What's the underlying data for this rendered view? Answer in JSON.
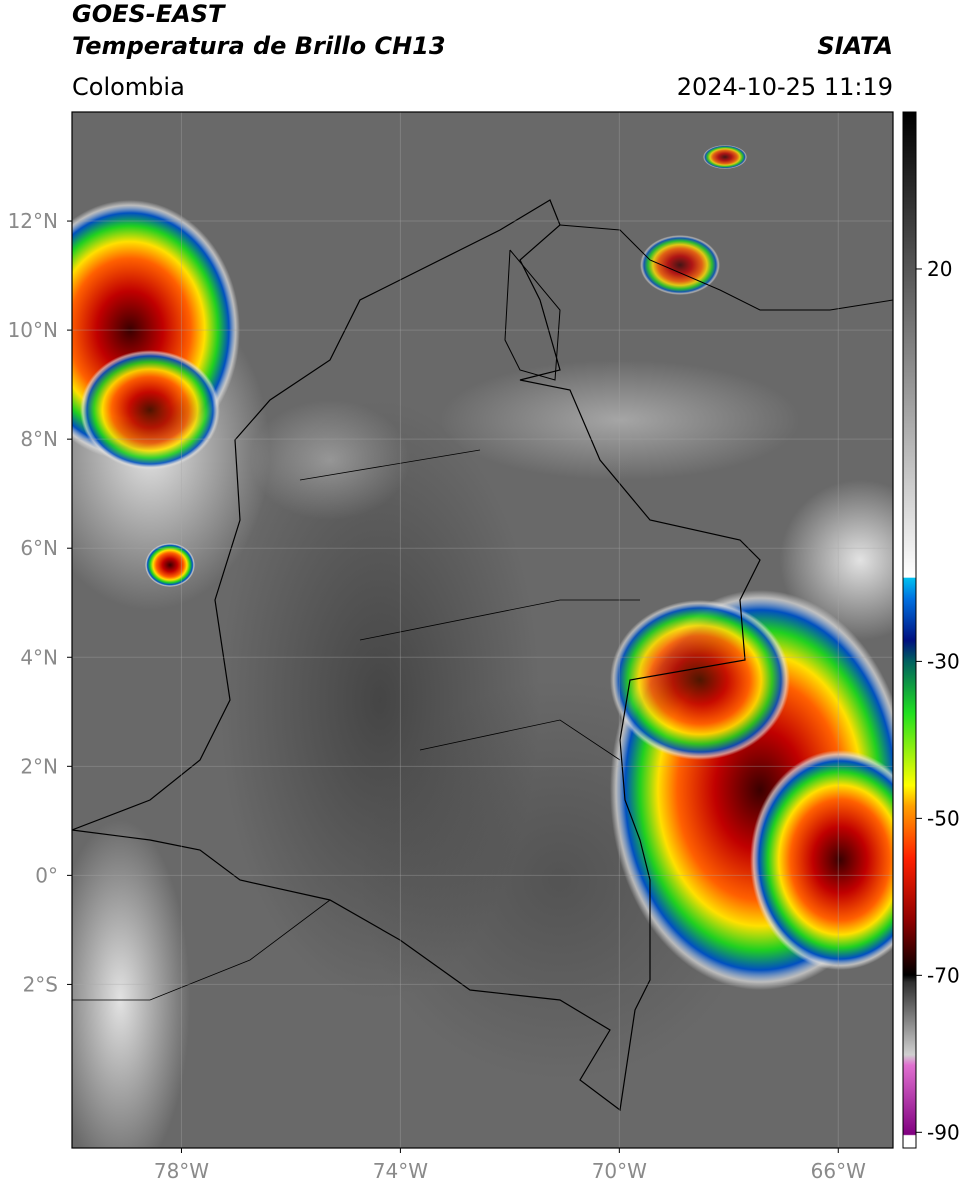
{
  "header": {
    "title": "GOES-EAST",
    "subtitle": "Temperatura de Brillo CH13",
    "source": "SIATA",
    "region": "Colombia",
    "timestamp": "2024-10-25 11:19"
  },
  "map": {
    "lon_range": [
      -80,
      -65
    ],
    "lat_range": [
      -5,
      14
    ],
    "grid": true,
    "lon_ticks": [
      {
        "value": -78,
        "label": "78°W"
      },
      {
        "value": -74,
        "label": "74°W"
      },
      {
        "value": -70,
        "label": "70°W"
      },
      {
        "value": -66,
        "label": "66°W"
      }
    ],
    "lat_ticks": [
      {
        "value": 12,
        "label": "12°N"
      },
      {
        "value": 10,
        "label": "10°N"
      },
      {
        "value": 8,
        "label": "8°N"
      },
      {
        "value": 6,
        "label": "6°N"
      },
      {
        "value": 4,
        "label": "4°N"
      },
      {
        "value": 2,
        "label": "2°N"
      },
      {
        "value": 0,
        "label": "0°"
      },
      {
        "value": -2,
        "label": "2°S"
      }
    ]
  },
  "colorbar": {
    "range": [
      -92,
      40
    ],
    "ticks": [
      20,
      -30,
      -50,
      -70,
      -90
    ]
  }
}
